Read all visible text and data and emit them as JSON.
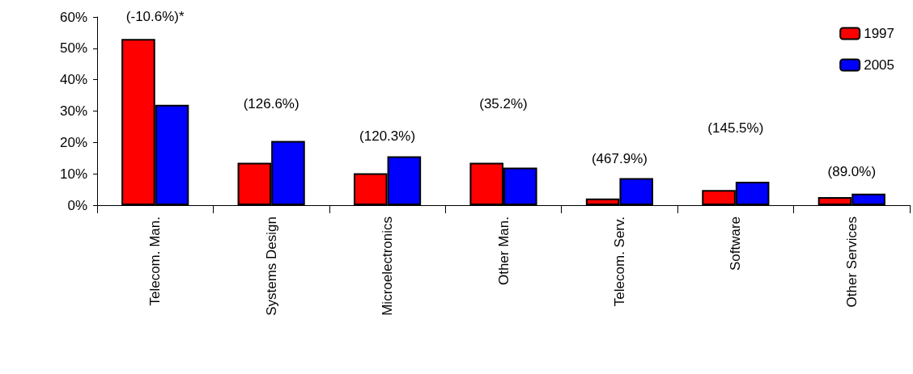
{
  "chart_data": {
    "type": "bar",
    "categories": [
      "Telecom. Man.",
      "Systems Design",
      "Microelectronics",
      "Other Man.",
      "Telecom. Serv.",
      "Software",
      "Other Services"
    ],
    "series": [
      {
        "name": "1997",
        "color": "#ff0000",
        "values": [
          53,
          13.5,
          10.2,
          13.5,
          2.1,
          4.8,
          2.6
        ]
      },
      {
        "name": "2005",
        "color": "#0000ff",
        "values": [
          32,
          20.5,
          15.6,
          12,
          8.6,
          7.5,
          3.7
        ]
      }
    ],
    "ylim": [
      0,
      60
    ],
    "yticks": [
      {
        "value": 0,
        "label": "0%"
      },
      {
        "value": 10,
        "label": "10%"
      },
      {
        "value": 20,
        "label": "20%"
      },
      {
        "value": 30,
        "label": "30%"
      },
      {
        "value": 40,
        "label": "40%"
      },
      {
        "value": 50,
        "label": "50%"
      },
      {
        "value": 60,
        "label": "60%"
      }
    ],
    "annotations": [
      "(-10.6%)*",
      "(126.6%)",
      "(120.3%)",
      "(35.2%)",
      "(467.9%)",
      "(145.5%)",
      "(89.0%)"
    ],
    "grid": false,
    "legend": "top right"
  }
}
